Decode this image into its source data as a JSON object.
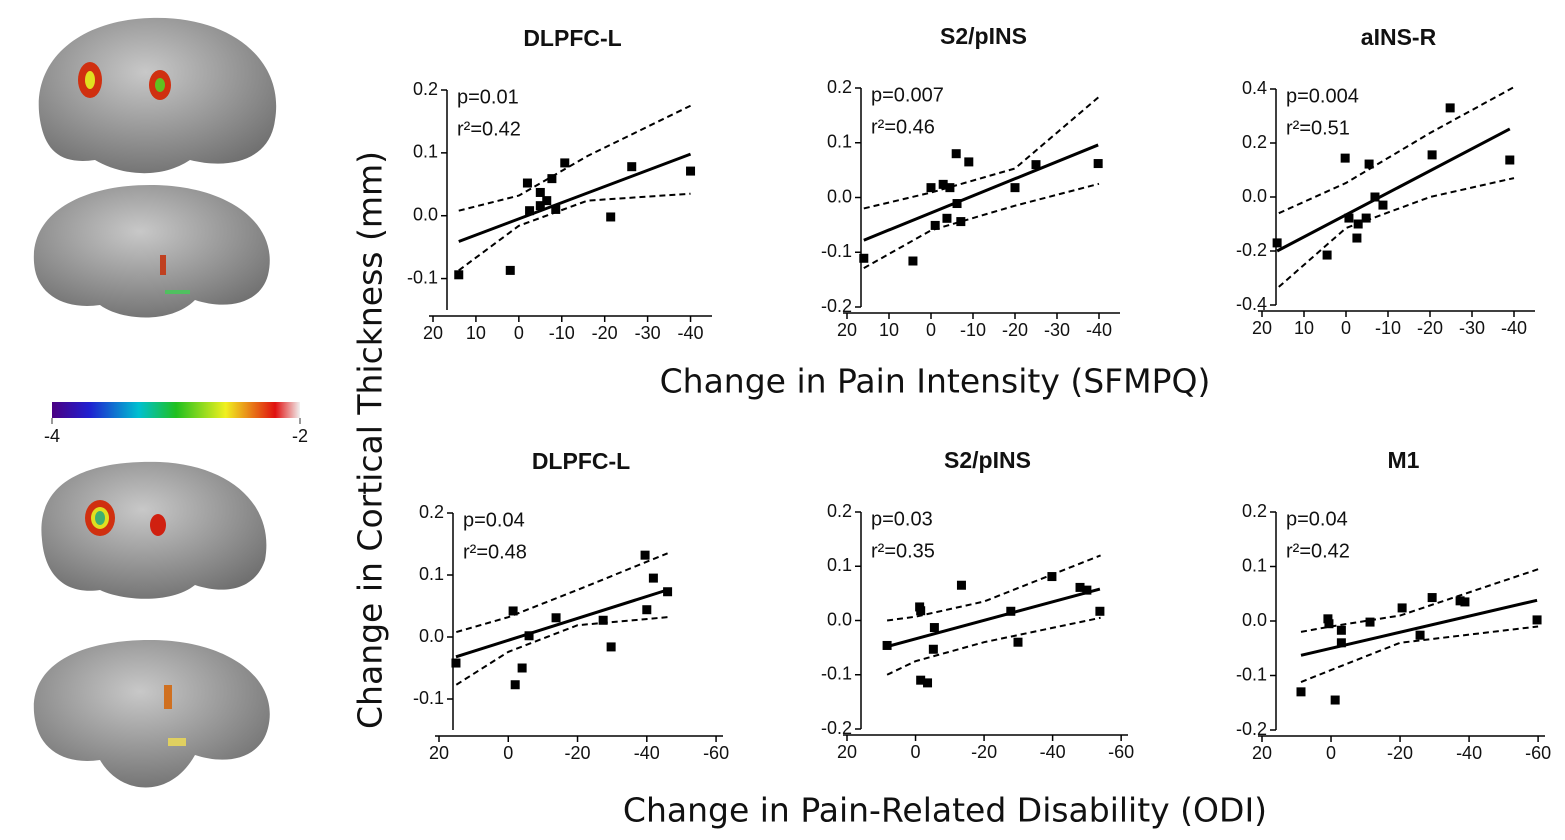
{
  "ylabel": "Change in Cortical Thickness (mm)",
  "row_xlabels": [
    "Change in Pain Intensity (SFMPQ)",
    "Change in Pain-Related Disability (ODI)"
  ],
  "colorbar": {
    "lim": [
      -4,
      -2
    ],
    "ticks": [
      -4,
      -2
    ]
  },
  "chart_data": [
    {
      "type": "scatter",
      "title": "DLPFC-L",
      "annotations": [
        "p=0.01",
        "r²=0.42"
      ],
      "color": "#000000",
      "x": [
        14,
        2,
        -2,
        -2.5,
        -5,
        -5,
        -6.5,
        -7.7,
        -8.6,
        -10.7,
        -21.4,
        -26.3,
        -40
      ],
      "values": [
        -0.094,
        -0.087,
        0.052,
        0.008,
        0.037,
        0.016,
        0.024,
        0.059,
        0.01,
        0.084,
        -0.002,
        0.078,
        0.071
      ],
      "fit": {
        "x": [
          14,
          -40
        ],
        "values": [
          -0.041,
          0.098
        ]
      },
      "ci_upper": {
        "x": [
          14,
          0,
          -16,
          -40
        ],
        "values": [
          0.008,
          0.032,
          0.095,
          0.175
        ]
      },
      "ci_lower": {
        "x": [
          14,
          0,
          -16,
          -40
        ],
        "values": [
          -0.087,
          -0.016,
          0.024,
          0.035
        ]
      },
      "xlim": [
        20,
        -45
      ],
      "ylim": [
        -0.15,
        0.2
      ],
      "xticks": [
        20,
        10,
        0,
        -10,
        -20,
        -30,
        -40
      ],
      "yticks": [
        -0.1,
        {
          "value": 0,
          "label": "0.0"
        },
        0.1,
        0.2
      ]
    },
    {
      "type": "scatter",
      "title": "S2/pINS",
      "annotations": [
        "p=0.007",
        "r²=0.46"
      ],
      "color": "#000000",
      "x": [
        16,
        4.3,
        0,
        -1,
        -2.9,
        -3.8,
        -4.5,
        -6,
        -6.2,
        -7.1,
        -9,
        -20,
        -25,
        -39.8
      ],
      "values": [
        -0.111,
        -0.116,
        0.018,
        -0.051,
        0.024,
        -0.038,
        0.018,
        0.08,
        -0.011,
        -0.044,
        0.065,
        0.018,
        0.06,
        0.062
      ],
      "fit": {
        "x": [
          16,
          -39.8
        ],
        "values": [
          -0.078,
          0.096
        ]
      },
      "ci_upper": {
        "x": [
          16,
          0,
          -20,
          -40
        ],
        "values": [
          -0.02,
          0.009,
          0.053,
          0.184
        ]
      },
      "ci_lower": {
        "x": [
          16,
          0,
          -20,
          -40
        ],
        "values": [
          -0.129,
          -0.06,
          -0.015,
          0.025
        ]
      },
      "xlim": [
        20,
        -45
      ],
      "ylim": [
        -0.2,
        0.2
      ],
      "xticks": [
        20,
        10,
        0,
        -10,
        -20,
        -30,
        -40
      ],
      "yticks": [
        -0.2,
        -0.1,
        {
          "value": 0,
          "label": "0.0"
        },
        0.1,
        0.2
      ]
    },
    {
      "type": "scatter",
      "title": "aINS-R",
      "annotations": [
        "p=0.004",
        "r²=0.51"
      ],
      "color": "#000000",
      "x": [
        16.4,
        4.5,
        0.2,
        -0.7,
        -2.6,
        -2.9,
        -4.8,
        -5.5,
        -6.9,
        -8.8,
        -20.5,
        -24.8,
        -39
      ],
      "values": [
        -0.17,
        -0.215,
        0.144,
        -0.078,
        -0.152,
        -0.1,
        -0.078,
        0.122,
        0.0,
        -0.03,
        0.156,
        0.33,
        0.137
      ],
      "fit": {
        "x": [
          16.4,
          -39
        ],
        "values": [
          -0.2,
          0.252
        ]
      },
      "ci_upper": {
        "x": [
          16,
          0,
          -20,
          -40
        ],
        "values": [
          -0.06,
          0.052,
          0.237,
          0.407
        ]
      },
      "ci_lower": {
        "x": [
          16,
          0,
          -20,
          -40
        ],
        "values": [
          -0.333,
          -0.115,
          0,
          0.07
        ]
      },
      "xlim": [
        20,
        -45
      ],
      "ylim": [
        -0.4,
        0.4
      ],
      "xticks": [
        20,
        10,
        0,
        -10,
        -20,
        -30,
        -40
      ],
      "yticks": [
        -0.4,
        -0.2,
        {
          "value": 0,
          "label": "0.0"
        },
        0.2,
        0.4
      ]
    },
    {
      "type": "scatter",
      "title": "DLPFC-L",
      "annotations": [
        "p=0.04",
        "r²=0.48"
      ],
      "color": "#000000",
      "x": [
        15.1,
        -1.4,
        -2,
        -4,
        -6,
        -13.8,
        -27.4,
        -29.7,
        -39.5,
        -40,
        -41.9,
        -46
      ],
      "values": [
        -0.042,
        0.042,
        -0.077,
        -0.05,
        0.002,
        0.031,
        0.027,
        -0.016,
        0.132,
        0.044,
        0.095,
        0.073
      ],
      "fit": {
        "x": [
          15.1,
          -46
        ],
        "values": [
          -0.032,
          0.076
        ]
      },
      "ci_upper": {
        "x": [
          15,
          0,
          -20,
          -46
        ],
        "values": [
          0.008,
          0.032,
          0.076,
          0.135
        ]
      },
      "ci_lower": {
        "x": [
          15,
          0,
          -20,
          -46
        ],
        "values": [
          -0.077,
          -0.024,
          0.019,
          0.032
        ]
      },
      "xlim": [
        20,
        -62
      ],
      "ylim": [
        -0.15,
        0.2
      ],
      "xticks": [
        20,
        0,
        -20,
        -40,
        -60
      ],
      "yticks": [
        -0.1,
        {
          "value": 0,
          "label": "0.0"
        },
        0.1,
        0.2
      ]
    },
    {
      "type": "scatter",
      "title": "S2/pINS",
      "annotations": [
        "p=0.03",
        "r²=0.35"
      ],
      "color": "#000000",
      "x": [
        8.3,
        -1.2,
        -1.5,
        -1.5,
        -3.5,
        -5.2,
        -5.5,
        -13.4,
        -27.8,
        -29.9,
        -39.8,
        -48,
        -50,
        -53.8
      ],
      "values": [
        -0.046,
        0.025,
        0.018,
        -0.11,
        -0.115,
        -0.053,
        -0.013,
        0.065,
        0.017,
        -0.04,
        0.081,
        0.061,
        0.056,
        0.017
      ],
      "fit": {
        "x": [
          8.3,
          -53.8
        ],
        "values": [
          -0.048,
          0.058
        ]
      },
      "ci_upper": {
        "x": [
          8.3,
          0,
          -20,
          -54
        ],
        "values": [
          0.0,
          0.007,
          0.035,
          0.12
        ]
      },
      "ci_lower": {
        "x": [
          8.3,
          0,
          -20,
          -54
        ],
        "values": [
          -0.1,
          -0.075,
          -0.04,
          0.005
        ]
      },
      "xlim": [
        20,
        -62
      ],
      "ylim": [
        -0.2,
        0.2
      ],
      "xticks": [
        20,
        0,
        -20,
        -40,
        -60
      ],
      "yticks": [
        -0.2,
        -0.1,
        {
          "value": 0,
          "label": "0.0"
        },
        0.1,
        0.2
      ]
    },
    {
      "type": "scatter",
      "title": "M1",
      "annotations": [
        "p=0.04",
        "r²=0.42"
      ],
      "color": "#000000",
      "x": [
        8.7,
        0.9,
        0.6,
        -1.2,
        -3,
        -3,
        -11.3,
        -20.6,
        -25.8,
        -29.3,
        -37.4,
        -38.8,
        -59.7
      ],
      "values": [
        -0.13,
        0.004,
        -0.005,
        -0.145,
        -0.017,
        -0.04,
        -0.002,
        0.024,
        -0.026,
        0.043,
        0.037,
        0.035,
        0.002
      ],
      "fit": {
        "x": [
          8.7,
          -59.7
        ],
        "values": [
          -0.063,
          0.038
        ]
      },
      "ci_upper": {
        "x": [
          8.7,
          0,
          -20,
          -60
        ],
        "values": [
          -0.02,
          -0.01,
          0.01,
          0.095
        ]
      },
      "ci_lower": {
        "x": [
          8.7,
          0,
          -20,
          -60
        ],
        "values": [
          -0.112,
          -0.09,
          -0.04,
          -0.01
        ]
      },
      "xlim": [
        20,
        -62
      ],
      "ylim": [
        -0.2,
        0.2
      ],
      "xticks": [
        20,
        0,
        -20,
        -40,
        -60
      ],
      "yticks": [
        -0.2,
        -0.1,
        {
          "value": 0,
          "label": "0.0"
        },
        0.1,
        0.2
      ]
    }
  ]
}
